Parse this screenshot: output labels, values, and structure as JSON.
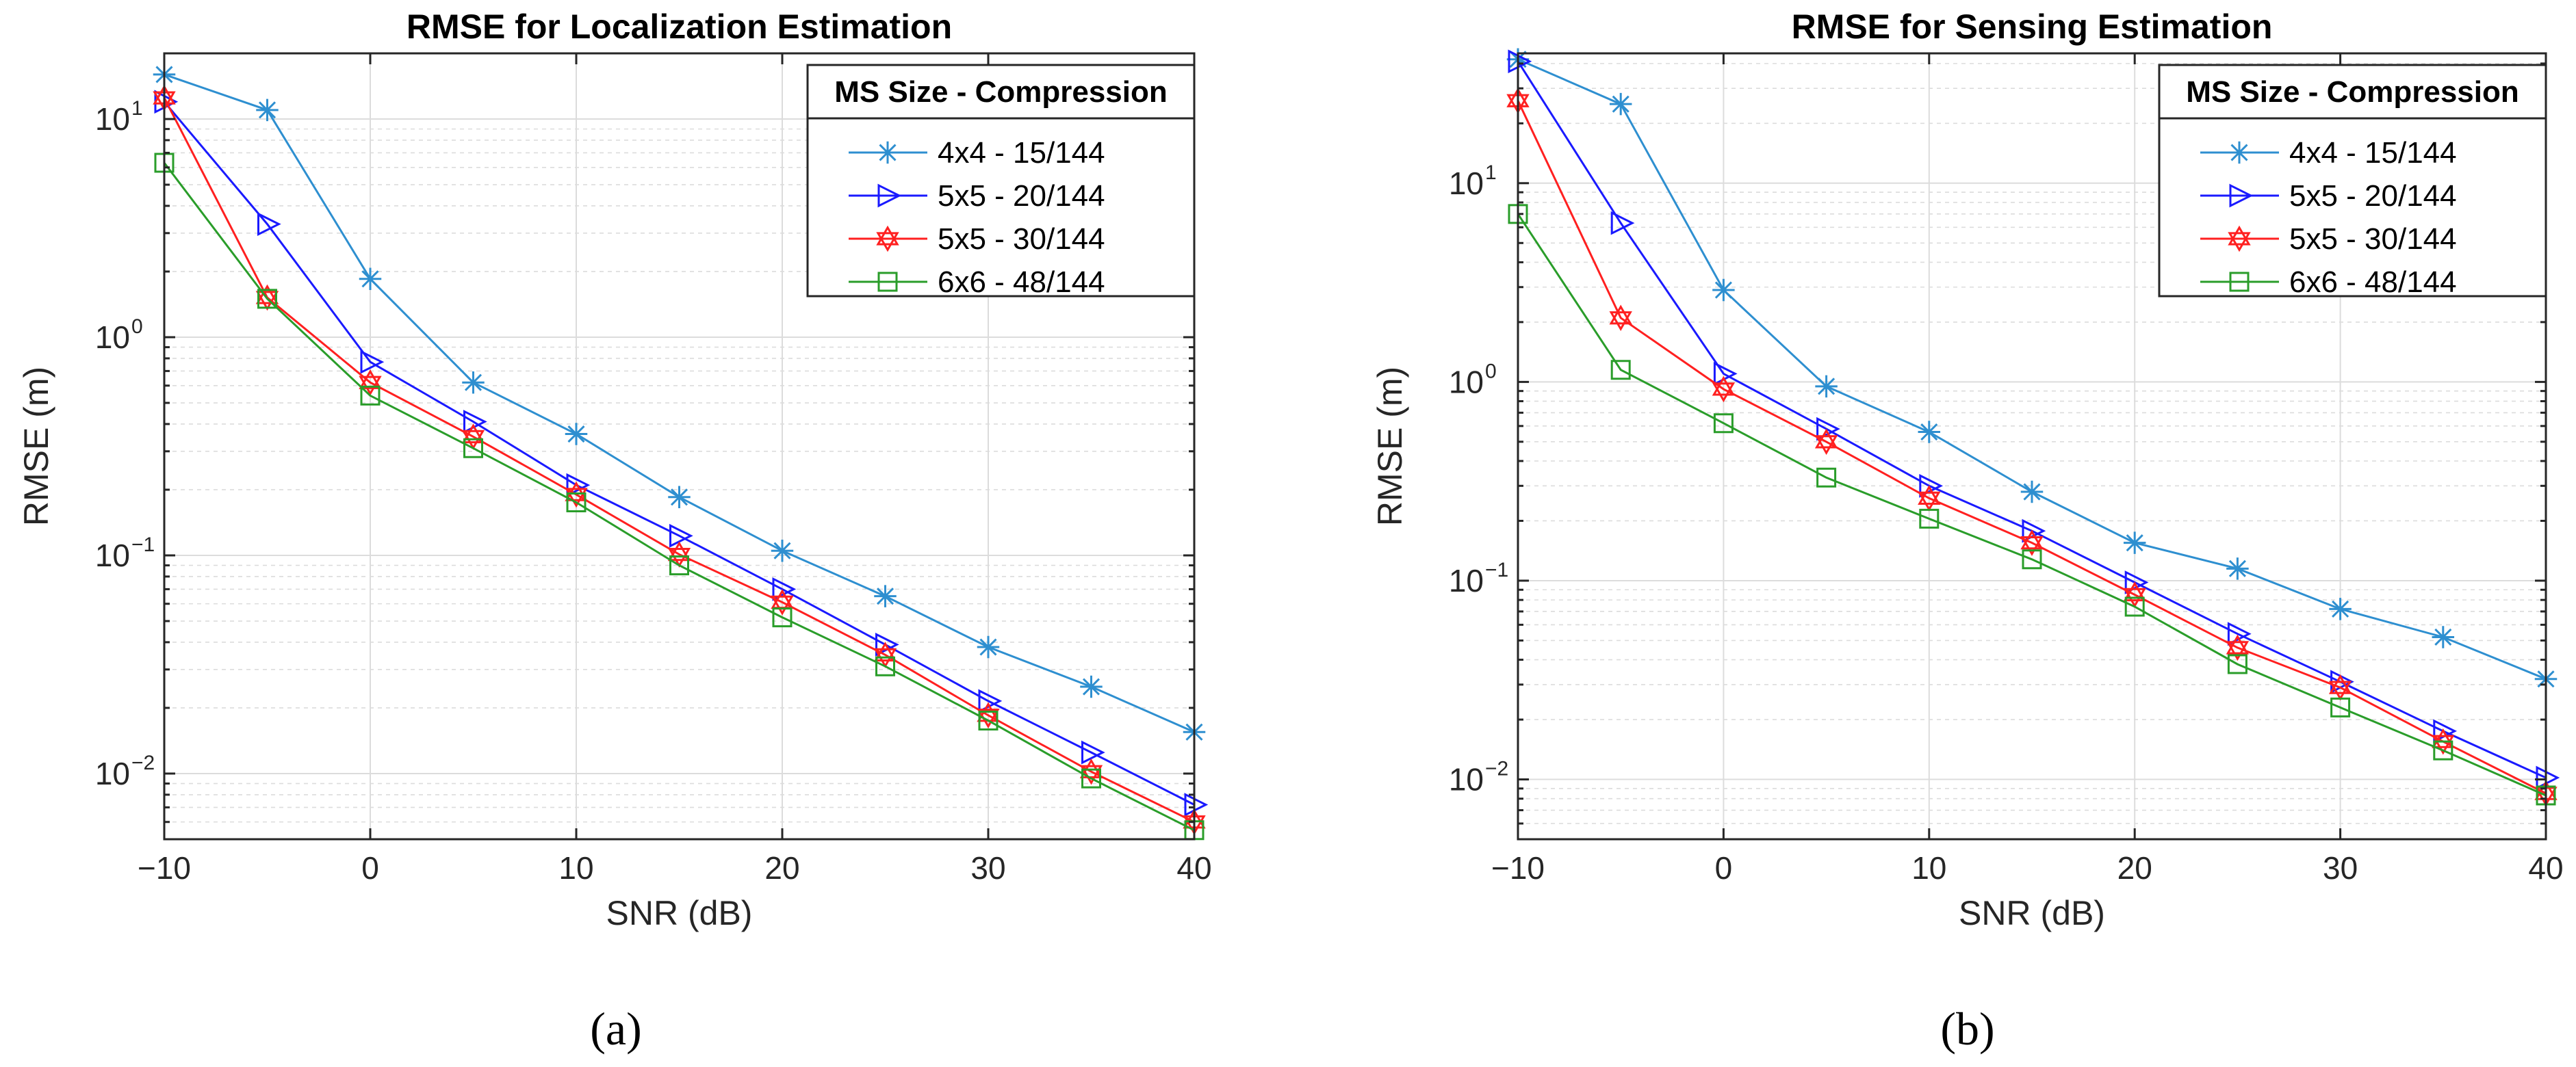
{
  "chart_data": [
    {
      "type": "line",
      "panel": "(a)",
      "title": "RMSE for Localization Estimation",
      "xlabel": "SNR (dB)",
      "ylabel": "RMSE (m)",
      "yscale": "log",
      "xlim": [
        -10,
        40
      ],
      "ylim": [
        0.005,
        20
      ],
      "xticks": [
        -10,
        0,
        10,
        20,
        30,
        40
      ],
      "xtick_labels": [
        "−10",
        "0",
        "10",
        "20",
        "30",
        "40"
      ],
      "yticks": [
        -2,
        -1,
        0,
        1
      ],
      "ytick_labels": [
        "10",
        "10",
        "10",
        "10"
      ],
      "ytick_exps": [
        "−2",
        "−1",
        "0",
        "1"
      ],
      "grid": true,
      "legend_title": "MS Size - Compression",
      "legend_position": "top-right",
      "x": [
        -10,
        -5,
        0,
        5,
        10,
        15,
        20,
        25,
        30,
        35,
        40
      ],
      "series": [
        {
          "name": "4x4 - 15/144",
          "color": "#2e8fd0",
          "marker": "star",
          "values": [
            16,
            11,
            1.85,
            0.62,
            0.36,
            0.185,
            0.105,
            0.065,
            0.038,
            0.025,
            0.0155
          ]
        },
        {
          "name": "5x5 - 20/144",
          "color": "#1a1aff",
          "marker": "triangle-right",
          "values": [
            12,
            3.3,
            0.77,
            0.41,
            0.21,
            0.123,
            0.07,
            0.039,
            0.0215,
            0.0125,
            0.0072
          ]
        },
        {
          "name": "5x5 - 30/144",
          "color": "#ff2020",
          "marker": "hexagram",
          "values": [
            12.5,
            1.52,
            0.62,
            0.35,
            0.19,
            0.101,
            0.061,
            0.035,
            0.0185,
            0.0102,
            0.006
          ]
        },
        {
          "name": "6x6 - 48/144",
          "color": "#2a9d2a",
          "marker": "square",
          "values": [
            6.3,
            1.5,
            0.54,
            0.31,
            0.175,
            0.09,
            0.052,
            0.031,
            0.0175,
            0.0095,
            0.0055
          ]
        }
      ]
    },
    {
      "type": "line",
      "panel": "(b)",
      "title": "RMSE for Sensing Estimation",
      "xlabel": "SNR (dB)",
      "ylabel": "RMSE (m)",
      "yscale": "log",
      "xlim": [
        -10,
        40
      ],
      "ylim": [
        0.005,
        45
      ],
      "xticks": [
        -10,
        0,
        10,
        20,
        30,
        40
      ],
      "xtick_labels": [
        "−10",
        "0",
        "10",
        "20",
        "30",
        "40"
      ],
      "yticks": [
        -2,
        -1,
        0,
        1
      ],
      "ytick_labels": [
        "10",
        "10",
        "10",
        "10"
      ],
      "ytick_exps": [
        "−2",
        "−1",
        "0",
        "1"
      ],
      "grid": true,
      "legend_title": "MS Size - Compression",
      "legend_position": "top-right",
      "x": [
        -10,
        -5,
        0,
        5,
        10,
        15,
        20,
        25,
        30,
        35,
        40
      ],
      "series": [
        {
          "name": "4x4 - 15/144",
          "color": "#2e8fd0",
          "marker": "star",
          "values": [
            42,
            25,
            2.9,
            0.95,
            0.56,
            0.28,
            0.155,
            0.115,
            0.072,
            0.052,
            0.032
          ]
        },
        {
          "name": "5x5 - 20/144",
          "color": "#1a1aff",
          "marker": "triangle-right",
          "values": [
            41,
            6.3,
            1.1,
            0.58,
            0.3,
            0.178,
            0.098,
            0.054,
            0.031,
            0.0175,
            0.0102
          ]
        },
        {
          "name": "5x5 - 30/144",
          "color": "#ff2020",
          "marker": "hexagram",
          "values": [
            26,
            2.1,
            0.92,
            0.5,
            0.26,
            0.155,
            0.085,
            0.046,
            0.029,
            0.0155,
            0.0085
          ]
        },
        {
          "name": "6x6 - 48/144",
          "color": "#2a9d2a",
          "marker": "square",
          "values": [
            7,
            1.15,
            0.62,
            0.33,
            0.205,
            0.128,
            0.074,
            0.038,
            0.023,
            0.014,
            0.0083
          ]
        }
      ]
    }
  ]
}
